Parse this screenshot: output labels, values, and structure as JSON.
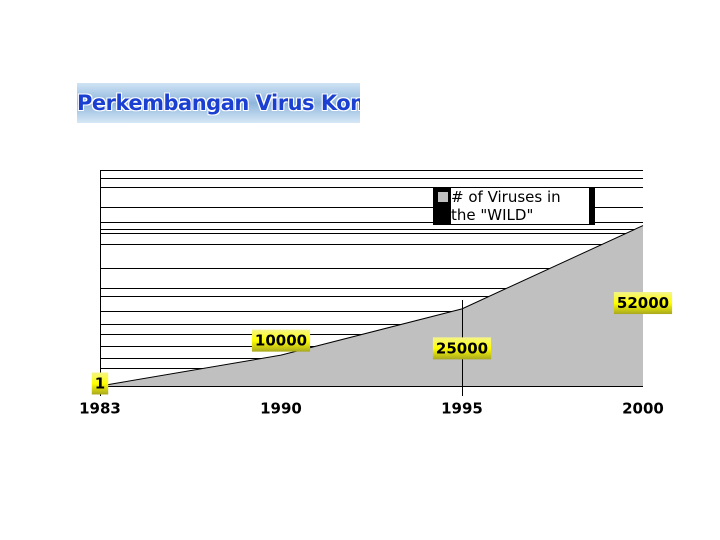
{
  "chart_data": {
    "type": "area",
    "title": "Perkembangan Virus Komputer",
    "categories": [
      "1983",
      "1990",
      "1995",
      "2000"
    ],
    "series": [
      {
        "name": "# of Viruses in the \"WILD\"",
        "color": "#c0c0c0",
        "values": [
          1,
          10000,
          25000,
          52000
        ]
      }
    ],
    "ylim": [
      0,
      70000
    ]
  }
}
